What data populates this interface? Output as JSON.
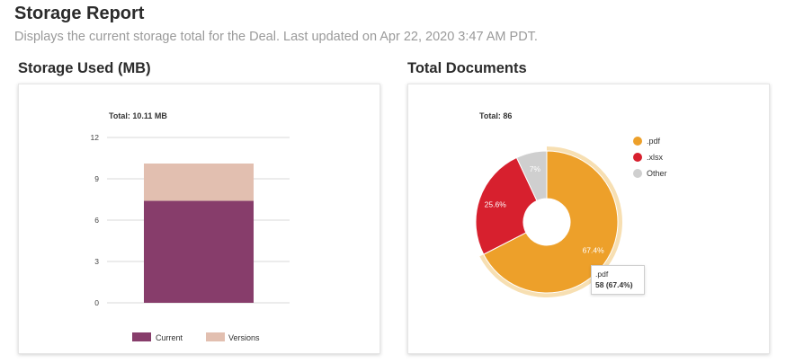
{
  "header": {
    "title": "Storage Report",
    "subtitle": "Displays the current storage total for the Deal. Last updated on Apr 22, 2020 3:47 AM PDT."
  },
  "storage_section": {
    "title": "Storage Used (MB)"
  },
  "documents_section": {
    "title": "Total Documents"
  },
  "colors": {
    "current": "#873d6b",
    "versions": "#e2bfb0",
    "pdf": "#eda02a",
    "xlsx": "#d7202e",
    "other": "#cfcfcf",
    "pdf_hover_ring": "#f7dfb2"
  },
  "chart_data": [
    {
      "type": "bar",
      "stacked": true,
      "total_label": "Total: 10.11 MB",
      "categories": [
        ""
      ],
      "series": [
        {
          "name": "Current",
          "values": [
            7.4
          ]
        },
        {
          "name": "Versions",
          "values": [
            2.71
          ]
        }
      ],
      "yticks": [
        0,
        3,
        6,
        9,
        12
      ],
      "ylim": [
        0,
        12
      ],
      "grid": true,
      "legend": "bottom"
    },
    {
      "type": "pie",
      "donut": true,
      "total_label": "Total: 86",
      "slices": [
        {
          "name": ".pdf",
          "value": 58,
          "label": "67.4%"
        },
        {
          "name": ".xlsx",
          "value": 22,
          "label": "25.6%"
        },
        {
          "name": "Other",
          "value": 6,
          "label": "7%"
        }
      ],
      "legend": "top-right",
      "tooltip": {
        "name": ".pdf",
        "value": "58 (67.4%)"
      }
    }
  ]
}
